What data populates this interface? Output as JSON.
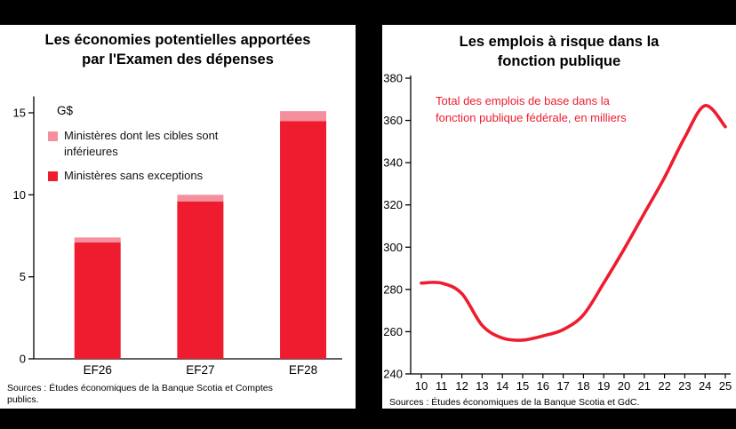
{
  "colors": {
    "accent_red": "#ee1c2e",
    "light_red": "#f58f9d",
    "axis_black": "#000000"
  },
  "chart_data": [
    {
      "type": "bar",
      "stacked": true,
      "title": "Les économies potentielles apportées par l'Examen des dépenses",
      "title_lines": [
        "Les économies potentielles apportées",
        "par l'Examen des dépenses"
      ],
      "unit_label": "G$",
      "categories": [
        "EF26",
        "EF27",
        "EF28"
      ],
      "series": [
        {
          "name": "Ministères sans exceptions",
          "color": "#ee1c2e",
          "values": [
            7.1,
            9.6,
            14.5
          ]
        },
        {
          "name": "Ministères dont les cibles sont inférieures",
          "color": "#f58f9d",
          "values": [
            0.3,
            0.4,
            0.6
          ]
        }
      ],
      "ylim": [
        0,
        16
      ],
      "yticks": [
        0,
        5,
        10,
        15
      ],
      "legend_position": "top-left-inside",
      "grid": false,
      "source": "Sources : Études économiques de la Banque Scotia et Comptes publics."
    },
    {
      "type": "line",
      "title": "Les emplois à risque dans la fonction publique",
      "title_lines": [
        "Les emplois à risque dans la",
        "fonction publique"
      ],
      "annotation": "Total des emplois de base dans la fonction publique fédérale, en milliers",
      "annotation_lines": [
        "Total des emplois de base dans la",
        "fonction publique fédérale, en milliers"
      ],
      "x": [
        10,
        11,
        12,
        13,
        14,
        15,
        16,
        17,
        18,
        19,
        20,
        21,
        22,
        23,
        24,
        25
      ],
      "values": [
        283,
        283,
        278,
        263,
        257,
        256,
        258,
        261,
        268,
        283,
        299,
        316,
        333,
        352,
        367,
        357
      ],
      "ylim": [
        240,
        380
      ],
      "yticks": [
        240,
        260,
        280,
        300,
        320,
        340,
        360,
        380
      ],
      "color": "#ee1c2e",
      "grid": false,
      "source": "Sources : Études économiques de la Banque Scotia et GdC."
    }
  ]
}
